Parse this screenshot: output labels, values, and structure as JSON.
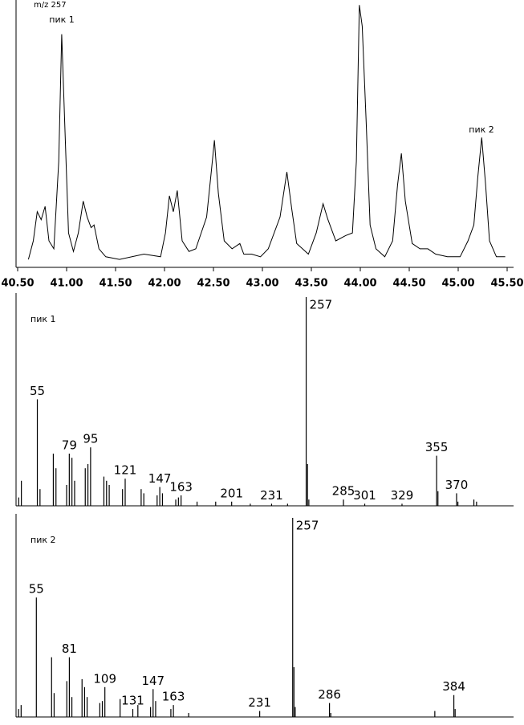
{
  "chart_data": [
    {
      "type": "line",
      "title": "m/z 257",
      "annotations": [
        "пик 1",
        "пик 2"
      ],
      "color": "#000000",
      "x": [
        40.61,
        40.66,
        40.7,
        40.74,
        40.78,
        40.82,
        40.87,
        40.92,
        40.95,
        40.98,
        41.02,
        41.07,
        41.12,
        41.17,
        41.21,
        41.25,
        41.28,
        41.33,
        41.4,
        41.54,
        41.79,
        41.96,
        42.01,
        42.05,
        42.09,
        42.13,
        42.18,
        42.25,
        42.32,
        42.43,
        42.48,
        42.51,
        42.55,
        42.61,
        42.69,
        42.77,
        42.81,
        42.89,
        42.98,
        43.06,
        43.18,
        43.25,
        43.3,
        43.35,
        43.47,
        43.55,
        43.62,
        43.67,
        43.75,
        43.85,
        43.92,
        43.96,
        43.99,
        44.02,
        44.06,
        44.1,
        44.16,
        44.25,
        44.33,
        44.38,
        44.42,
        44.46,
        44.53,
        44.61,
        44.69,
        44.77,
        44.89,
        45.02,
        45.1,
        45.16,
        45.2,
        45.24,
        45.28,
        45.32,
        45.39,
        45.48
      ],
      "values": [
        3,
        10,
        21,
        18,
        23,
        10,
        7,
        40,
        88,
        55,
        13,
        6,
        13,
        25,
        19,
        15,
        16,
        7,
        4,
        3,
        5,
        4,
        13,
        27,
        21,
        29,
        10,
        6,
        7,
        19,
        37,
        48,
        28,
        10,
        7,
        9,
        5,
        5,
        4,
        7,
        19,
        36,
        22,
        9,
        5,
        13,
        24,
        18,
        10,
        12,
        13,
        40,
        99,
        91,
        55,
        16,
        7,
        4,
        10,
        31,
        43,
        25,
        9,
        7,
        7,
        5,
        4,
        4,
        10,
        16,
        34,
        49,
        31,
        10,
        4,
        4
      ],
      "xlim": [
        40.5,
        45.5
      ],
      "ylim": [
        0,
        100
      ],
      "xticks": [
        {
          "value": 40.5,
          "label": "40.50"
        },
        {
          "value": 41,
          "label": "41.00"
        },
        {
          "value": 41.5,
          "label": "41.50"
        },
        {
          "value": 42,
          "label": "42.00"
        },
        {
          "value": 42.5,
          "label": "42.50"
        },
        {
          "value": 43,
          "label": "43.00"
        },
        {
          "value": 43.5,
          "label": "43.50"
        },
        {
          "value": 44,
          "label": "44.00"
        },
        {
          "value": 44.5,
          "label": "44.50"
        },
        {
          "value": 45,
          "label": "45.00"
        },
        {
          "value": 45.5,
          "label": "45.50"
        }
      ]
    },
    {
      "type": "bar",
      "title": "пик 1",
      "color": "#000000",
      "x": [
        41,
        43,
        55,
        57,
        67,
        69,
        77,
        79,
        81,
        83,
        91,
        93,
        95,
        105,
        107,
        109,
        119,
        121,
        133,
        135,
        145,
        147,
        149,
        159,
        161,
        163,
        175,
        189,
        201,
        215,
        231,
        243,
        257,
        258,
        259,
        285,
        301,
        329,
        355,
        356,
        370,
        371,
        383,
        385
      ],
      "values": [
        4,
        12,
        51,
        8,
        25,
        18,
        10,
        25,
        23,
        12,
        18,
        20,
        28,
        14,
        12,
        10,
        8,
        13,
        8,
        6,
        5,
        9,
        6,
        3,
        4,
        5,
        2,
        2,
        2,
        1,
        1,
        1,
        100,
        20,
        3,
        3,
        1,
        1,
        24,
        7,
        6,
        2,
        3,
        2
      ],
      "peak_labels": [
        55,
        79,
        95,
        121,
        147,
        163,
        201,
        231,
        257,
        285,
        301,
        329,
        355,
        370
      ],
      "xlim": [
        39,
        408
      ],
      "ylim": [
        0,
        100
      ]
    },
    {
      "type": "bar",
      "title": "пик 2",
      "color": "#000000",
      "x": [
        41,
        43,
        55,
        67,
        69,
        79,
        81,
        83,
        91,
        93,
        95,
        105,
        107,
        109,
        121,
        131,
        135,
        145,
        147,
        149,
        161,
        163,
        175,
        231,
        257,
        258,
        259,
        286,
        287,
        369,
        384,
        385
      ],
      "values": [
        4,
        6,
        60,
        30,
        12,
        18,
        30,
        10,
        19,
        15,
        10,
        7,
        8,
        15,
        9,
        4,
        6,
        5,
        14,
        8,
        4,
        6,
        2,
        3,
        100,
        25,
        5,
        7,
        2,
        3,
        11,
        4
      ],
      "peak_labels": [
        55,
        81,
        109,
        131,
        147,
        163,
        231,
        257,
        286,
        384
      ],
      "xlim": [
        39,
        426
      ],
      "ylim": [
        0,
        100
      ]
    }
  ]
}
